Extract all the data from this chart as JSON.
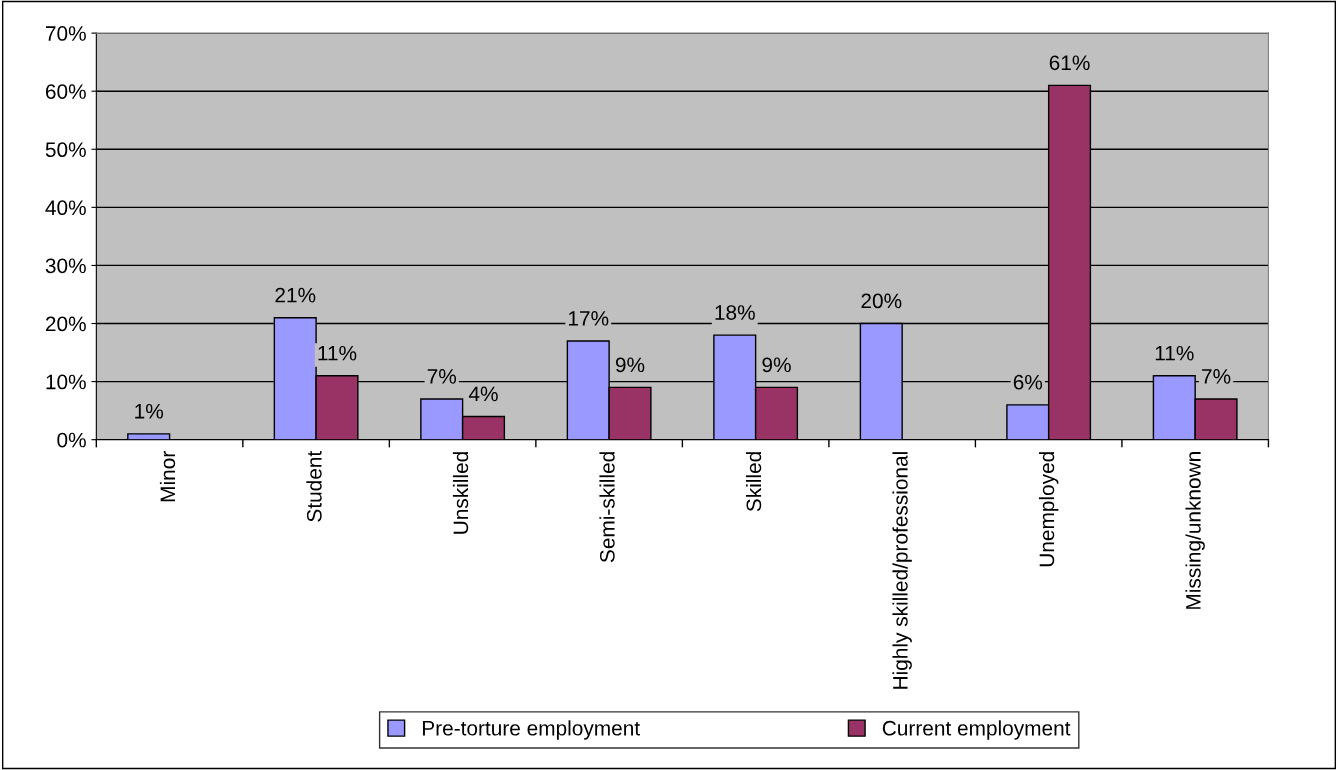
{
  "chart_data": {
    "type": "bar",
    "categories": [
      "Minor",
      "Student",
      "Unskilled",
      "Semi-skilled",
      "Skilled",
      "Highly skilled/professional",
      "Unemployed",
      "Missing/unknown"
    ],
    "series": [
      {
        "name": "Pre-torture employment",
        "color": "#9999ff",
        "values": [
          1,
          21,
          7,
          17,
          18,
          20,
          6,
          11
        ],
        "value_labels": [
          "1%",
          "21%",
          "7%",
          "17%",
          "18%",
          "20%",
          "6%",
          "11%"
        ]
      },
      {
        "name": "Current employment",
        "color": "#993366",
        "values": [
          null,
          11,
          4,
          9,
          9,
          null,
          61,
          7
        ],
        "value_labels": [
          null,
          "11%",
          "4%",
          "9%",
          "9%",
          null,
          "61%",
          "7%"
        ]
      }
    ],
    "ylim": [
      0,
      70
    ],
    "yticks": [
      {
        "value": 0,
        "label": "0%"
      },
      {
        "value": 10,
        "label": "10%"
      },
      {
        "value": 20,
        "label": "20%"
      },
      {
        "value": 30,
        "label": "30%"
      },
      {
        "value": 40,
        "label": "40%"
      },
      {
        "value": 50,
        "label": "50%"
      },
      {
        "value": 60,
        "label": "60%"
      },
      {
        "value": 70,
        "label": "70%"
      }
    ],
    "grid": "y",
    "legend": "bottom"
  }
}
